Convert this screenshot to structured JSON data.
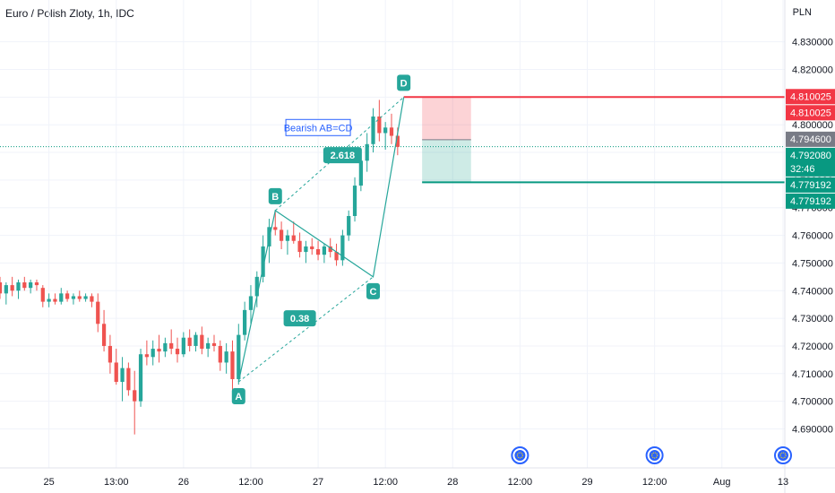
{
  "header": {
    "title": "Euro / Polish Zloty, 1h, IDC",
    "currency": "PLN"
  },
  "colors": {
    "up": "#26a69a",
    "down": "#ef5350",
    "pattern": "#26a69a",
    "stop_zone": "rgba(242,54,69,0.22)",
    "target_zone": "rgba(8,153,129,0.20)",
    "stop_line": "#f23645",
    "target_line": "#089981",
    "current_tag": "#089981",
    "last_close_tag": "#787b86",
    "pattern_label_border": "#2962ff",
    "pattern_label_text": "#2962ff",
    "event_icon": "#2962ff"
  },
  "chart_data": {
    "type": "candlestick",
    "symbol": "Euro / Polish Zloty",
    "interval": "1h",
    "source": "IDC",
    "y_unit": "PLN",
    "ylim": [
      4.684,
      4.838
    ],
    "xlim": [
      0,
      128
    ],
    "y_ticks": [
      "4.690000",
      "4.700000",
      "4.710000",
      "4.720000",
      "4.730000",
      "4.740000",
      "4.750000",
      "4.760000",
      "4.770000",
      "4.780000",
      "4.790000",
      "4.800000",
      "4.810000",
      "4.820000",
      "4.830000"
    ],
    "y_tick_values": [
      4.69,
      4.7,
      4.71,
      4.72,
      4.73,
      4.74,
      4.75,
      4.76,
      4.77,
      4.78,
      4.79,
      4.8,
      4.81,
      4.82,
      4.83
    ],
    "x_ticks": [
      {
        "label": "25",
        "x": 8
      },
      {
        "label": "13:00",
        "x": 19
      },
      {
        "label": "26",
        "x": 30
      },
      {
        "label": "12:00",
        "x": 41
      },
      {
        "label": "27",
        "x": 52
      },
      {
        "label": "12:00",
        "x": 63
      },
      {
        "label": "28",
        "x": 74
      },
      {
        "label": "12:00",
        "x": 85
      },
      {
        "label": "29",
        "x": 96
      },
      {
        "label": "12:00",
        "x": 107
      },
      {
        "label": "Aug",
        "x": 118
      },
      {
        "label": "13",
        "x": 128
      }
    ],
    "candles": [
      [
        4.743,
        4.745,
        4.737,
        4.739
      ],
      [
        4.739,
        4.743,
        4.735,
        4.742
      ],
      [
        4.742,
        4.745,
        4.738,
        4.74
      ],
      [
        4.74,
        4.744,
        4.737,
        4.743
      ],
      [
        4.743,
        4.745,
        4.74,
        4.741
      ],
      [
        4.741,
        4.744,
        4.739,
        4.743
      ],
      [
        4.743,
        4.744,
        4.74,
        4.742
      ],
      [
        4.741,
        4.742,
        4.734,
        4.736
      ],
      [
        4.736,
        4.739,
        4.734,
        4.737
      ],
      [
        4.737,
        4.739,
        4.735,
        4.736
      ],
      [
        4.736,
        4.741,
        4.735,
        4.739
      ],
      [
        4.739,
        4.74,
        4.736,
        4.737
      ],
      [
        4.737,
        4.739,
        4.735,
        4.738
      ],
      [
        4.738,
        4.74,
        4.736,
        4.737
      ],
      [
        4.737,
        4.739,
        4.736,
        4.738
      ],
      [
        4.738,
        4.739,
        4.734,
        4.736
      ],
      [
        4.736,
        4.739,
        4.725,
        4.728
      ],
      [
        4.728,
        4.733,
        4.718,
        4.72
      ],
      [
        4.72,
        4.724,
        4.71,
        4.714
      ],
      [
        4.714,
        4.719,
        4.706,
        4.707
      ],
      [
        4.707,
        4.716,
        4.7,
        4.712
      ],
      [
        4.712,
        4.714,
        4.702,
        4.704
      ],
      [
        4.704,
        4.711,
        4.688,
        4.7
      ],
      [
        4.7,
        4.719,
        4.698,
        4.717
      ],
      [
        4.717,
        4.722,
        4.713,
        4.716
      ],
      [
        4.716,
        4.722,
        4.713,
        4.719
      ],
      [
        4.719,
        4.724,
        4.714,
        4.718
      ],
      [
        4.718,
        4.723,
        4.716,
        4.721
      ],
      [
        4.721,
        4.726,
        4.717,
        4.719
      ],
      [
        4.719,
        4.723,
        4.714,
        4.717
      ],
      [
        4.717,
        4.725,
        4.716,
        4.723
      ],
      [
        4.723,
        4.726,
        4.718,
        4.72
      ],
      [
        4.72,
        4.725,
        4.718,
        4.724
      ],
      [
        4.724,
        4.727,
        4.717,
        4.719
      ],
      [
        4.719,
        4.723,
        4.716,
        4.721
      ],
      [
        4.721,
        4.724,
        4.718,
        4.72
      ],
      [
        4.72,
        4.722,
        4.711,
        4.714
      ],
      [
        4.714,
        4.721,
        4.71,
        4.718
      ],
      [
        4.718,
        4.722,
        4.704,
        4.708
      ],
      [
        4.708,
        4.728,
        4.706,
        4.724
      ],
      [
        4.724,
        4.736,
        4.722,
        4.733
      ],
      [
        4.733,
        4.742,
        4.728,
        4.738
      ],
      [
        4.738,
        4.747,
        4.734,
        4.745
      ],
      [
        4.745,
        4.76,
        4.743,
        4.756
      ],
      [
        4.756,
        4.766,
        4.75,
        4.763
      ],
      [
        4.763,
        4.769,
        4.76,
        4.762
      ],
      [
        4.762,
        4.765,
        4.755,
        4.758
      ],
      [
        4.758,
        4.762,
        4.753,
        4.76
      ],
      [
        4.76,
        4.765,
        4.757,
        4.758
      ],
      [
        4.758,
        4.761,
        4.752,
        4.754
      ],
      [
        4.754,
        4.758,
        4.75,
        4.756
      ],
      [
        4.756,
        4.759,
        4.753,
        4.755
      ],
      [
        4.755,
        4.758,
        4.751,
        4.753
      ],
      [
        4.753,
        4.757,
        4.75,
        4.756
      ],
      [
        4.756,
        4.759,
        4.752,
        4.754
      ],
      [
        4.754,
        4.757,
        4.749,
        4.751
      ],
      [
        4.751,
        4.762,
        4.749,
        4.76
      ],
      [
        4.76,
        4.769,
        4.758,
        4.767
      ],
      [
        4.767,
        4.781,
        4.765,
        4.778
      ],
      [
        4.778,
        4.79,
        4.776,
        4.787
      ],
      [
        4.787,
        4.797,
        4.783,
        4.793
      ],
      [
        4.793,
        4.806,
        4.79,
        4.803
      ],
      [
        4.803,
        4.809,
        4.794,
        4.797
      ],
      [
        4.797,
        4.801,
        4.791,
        4.799
      ],
      [
        4.799,
        4.804,
        4.793,
        4.796
      ],
      [
        4.796,
        4.799,
        4.789,
        4.792
      ]
    ],
    "candle_start_x": 0,
    "pattern": {
      "name": "Bearish AB=CD",
      "points": [
        {
          "label": "A",
          "x": 39,
          "y": 4.707
        },
        {
          "label": "B",
          "x": 45,
          "y": 4.769
        },
        {
          "label": "C",
          "x": 61,
          "y": 4.745
        },
        {
          "label": "D",
          "x": 66,
          "y": 4.81
        }
      ],
      "ratios": [
        {
          "label": "0.38",
          "x": 49,
          "y": 4.73
        },
        {
          "label": "2.618",
          "x": 56,
          "y": 4.789
        }
      ]
    },
    "position": {
      "type": "short",
      "x_start": 69,
      "x_end": 77,
      "entry": 4.7946,
      "stop": 4.810025,
      "target": 4.779192
    },
    "price_tags": [
      {
        "value": 4.810025,
        "label": "4.810025",
        "kind": "stop"
      },
      {
        "value": 4.810025,
        "label": "4.810025",
        "kind": "stop"
      },
      {
        "value": 4.7946,
        "label": "4.794600",
        "kind": "last_close"
      },
      {
        "value": 4.79208,
        "label": "4.792080",
        "sub": "32:46",
        "kind": "current"
      },
      {
        "value": 4.779192,
        "label": "4.779192",
        "kind": "target"
      },
      {
        "value": 4.779192,
        "label": "4.779192",
        "kind": "target"
      }
    ],
    "current_price": 4.79208,
    "events_x": [
      85,
      107,
      128
    ]
  }
}
